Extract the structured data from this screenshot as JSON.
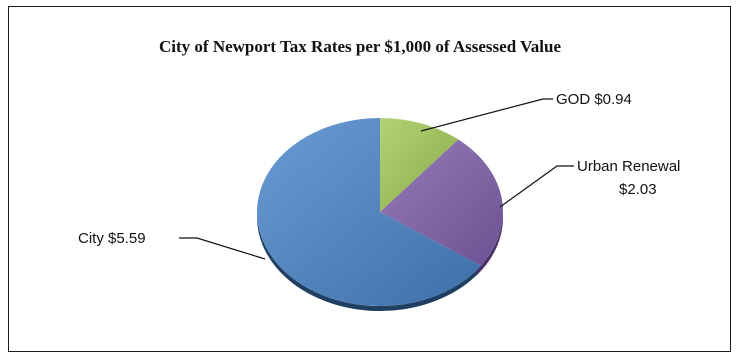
{
  "chart_data": {
    "type": "pie",
    "title": "City of Newport Tax Rates per $1,000 of Assessed Value",
    "slices": [
      {
        "name": "GOD",
        "value": 0.94,
        "label": "GOD $0.94",
        "color": "#9bbb59"
      },
      {
        "name": "Urban Renewal",
        "value": 2.03,
        "label_lines": [
          "Urban Renewal",
          "$2.03"
        ],
        "color": "#8064a2"
      },
      {
        "name": "City",
        "value": 5.59,
        "label": "City $5.59",
        "color": "#4f81bd"
      }
    ],
    "start_angle_deg": 0,
    "direction": "clockwise"
  }
}
